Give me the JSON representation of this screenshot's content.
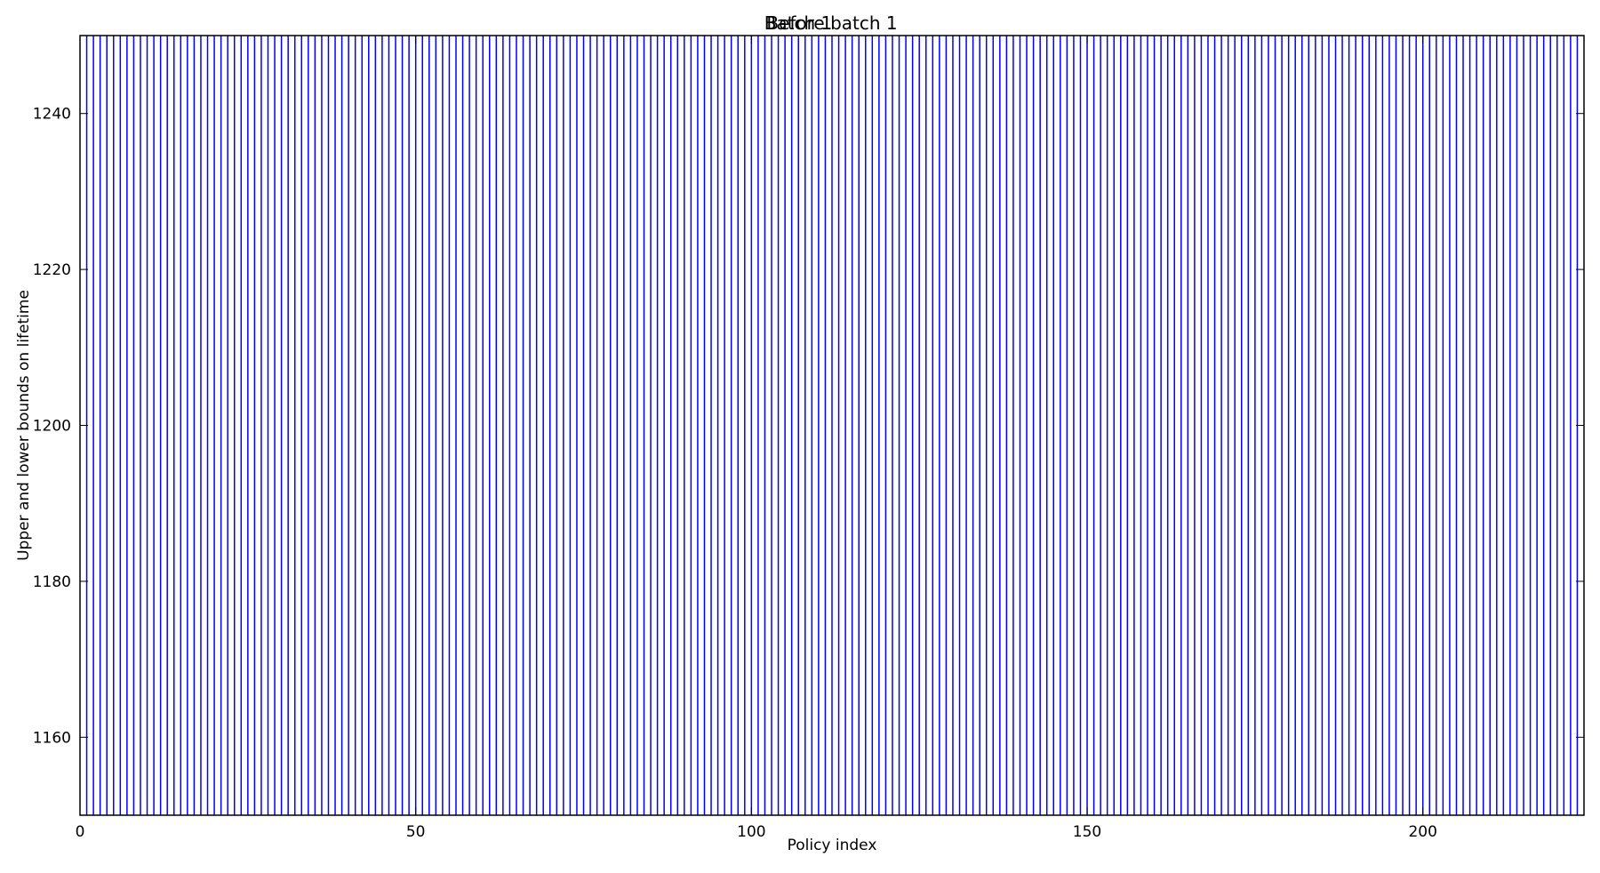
{
  "chart_data": {
    "type": "bar",
    "title": "Before batch 1",
    "title_overlay": "Batch 1",
    "xlabel": "Policy index",
    "ylabel": "Upper and lower bounds on lifetime",
    "xlim": [
      0,
      224
    ],
    "ylim": [
      1150,
      1250
    ],
    "x_ticks": [
      0,
      50,
      100,
      150,
      200
    ],
    "y_ticks": [
      1160,
      1180,
      1200,
      1220,
      1240
    ],
    "grid": false,
    "series": [
      {
        "style": "vertical error bars spanning the full visible y-range",
        "x_start": 1,
        "x_end": 223,
        "x_step": 1,
        "lower_bound_below": 1150,
        "upper_bound_above": 1250
      }
    ],
    "colors": {
      "bars": "#0000ff",
      "axes": "#000000"
    }
  }
}
